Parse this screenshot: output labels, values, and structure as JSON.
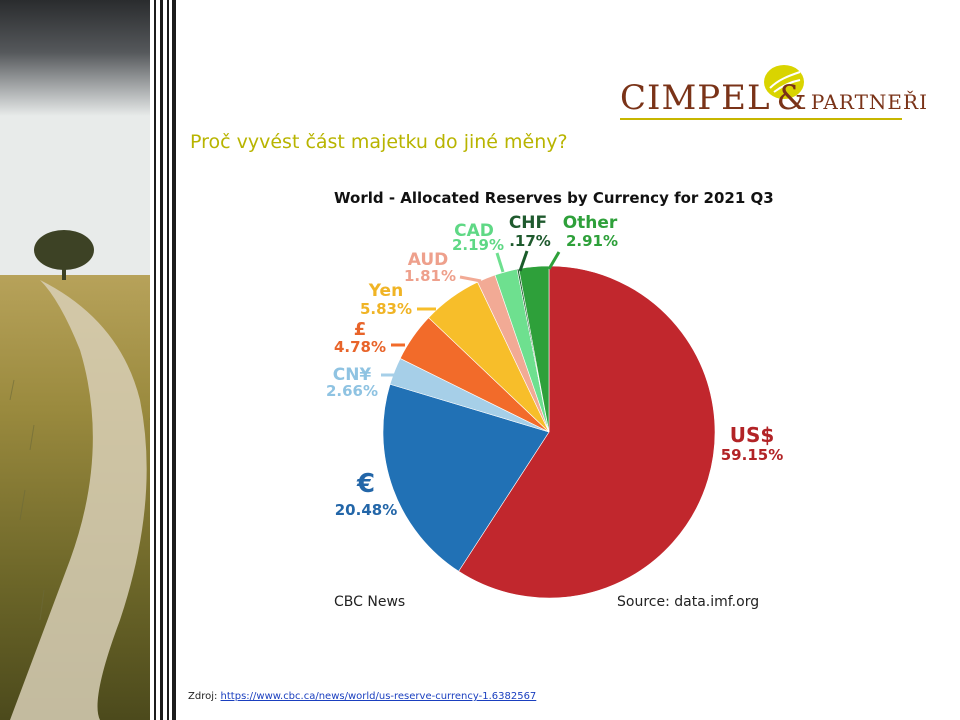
{
  "heading": "Proč vyvést část majetku do jiné měny?",
  "logo": {
    "main": "CIMPEL",
    "amp": "&",
    "sub": "PARTNEŘI"
  },
  "footer": {
    "left": "CBC News",
    "right": "Source: data.imf.org"
  },
  "source": {
    "label": "Zdroj:",
    "url": "https://www.cbc.ca/news/world/us-reserve-currency-1.6382567"
  },
  "chart_data": {
    "type": "pie",
    "title": "World - Allocated Reserves by Currency for 2021 Q3",
    "slices": [
      {
        "name": "US$",
        "value": 59.15,
        "label": "59.15%",
        "color": "#c1272d"
      },
      {
        "name": "€",
        "value": 20.48,
        "label": "20.48%",
        "color": "#2171b5"
      },
      {
        "name": "CN¥",
        "value": 2.66,
        "label": "2.66%",
        "color": "#a6cfe8"
      },
      {
        "name": "£",
        "value": 4.78,
        "label": "4.78%",
        "color": "#f26b2a"
      },
      {
        "name": "Yen",
        "value": 5.83,
        "label": "5.83%",
        "color": "#f7be2a"
      },
      {
        "name": "AUD",
        "value": 1.81,
        "label": "1.81%",
        "color": "#f2aa95"
      },
      {
        "name": "CAD",
        "value": 2.19,
        "label": "2.19%",
        "color": "#6ee08f"
      },
      {
        "name": "CHF",
        "value": 0.17,
        "label": ".17%",
        "color": "#1a5c2a"
      },
      {
        "name": "Other",
        "value": 2.91,
        "label": "2.91%",
        "color": "#2ea03a"
      }
    ],
    "label_colors": {
      "US$": "#b22326",
      "€": "#2366a8",
      "CN¥": "#8fc3e2",
      "£": "#e8642a",
      "Yen": "#f0b425",
      "AUD": "#eea08c",
      "CAD": "#5fd885",
      "CHF": "#1f5a2e",
      "Other": "#2ea03a"
    }
  }
}
